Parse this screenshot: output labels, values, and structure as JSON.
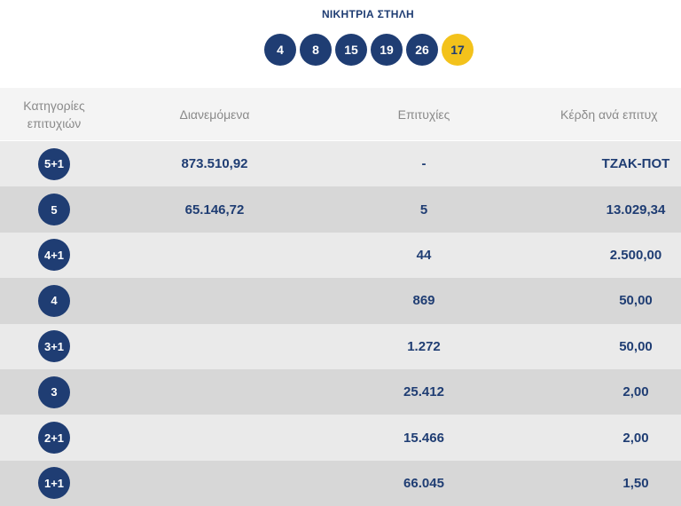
{
  "title": "ΝΙΚΗΤΡΙΑ ΣΤΗΛΗ",
  "numbers": [
    "4",
    "8",
    "15",
    "19",
    "26"
  ],
  "joker": "17",
  "colors": {
    "primary": "#1f3d73",
    "joker": "#f3c21b"
  },
  "headers": {
    "category": "Κατηγορίες επιτυχιών",
    "distributed": "Διανεμόμενα",
    "winners": "Επιτυχίες",
    "prize": "Κέρδη ανά επιτυχ"
  },
  "rows": [
    {
      "category": "5+1",
      "distributed": "873.510,92",
      "winners": "-",
      "prize": "ΤΖΑΚ-ΠΟΤ"
    },
    {
      "category": "5",
      "distributed": "65.146,72",
      "winners": "5",
      "prize": "13.029,34"
    },
    {
      "category": "4+1",
      "distributed": "",
      "winners": "44",
      "prize": "2.500,00"
    },
    {
      "category": "4",
      "distributed": "",
      "winners": "869",
      "prize": "50,00"
    },
    {
      "category": "3+1",
      "distributed": "",
      "winners": "1.272",
      "prize": "50,00"
    },
    {
      "category": "3",
      "distributed": "",
      "winners": "25.412",
      "prize": "2,00"
    },
    {
      "category": "2+1",
      "distributed": "",
      "winners": "15.466",
      "prize": "2,00"
    },
    {
      "category": "1+1",
      "distributed": "",
      "winners": "66.045",
      "prize": "1,50"
    }
  ]
}
